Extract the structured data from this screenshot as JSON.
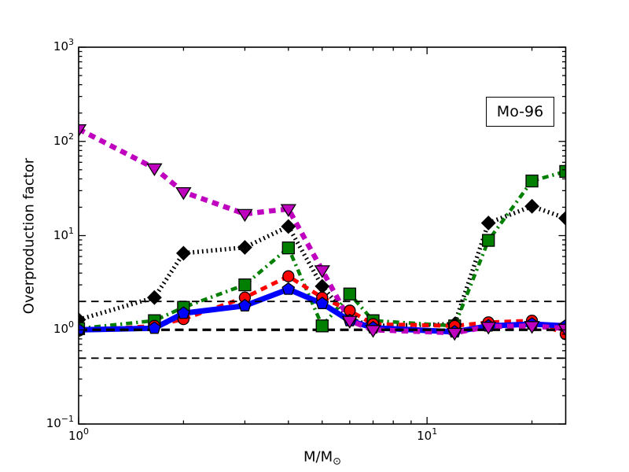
{
  "labels": {
    "xlabel_main": "M/M",
    "xlabel_sub": "⊙"
  },
  "chart_data": {
    "type": "line",
    "title": "",
    "annotation": "Mo-96",
    "xlabel": "M/M⊙",
    "ylabel": "Overproduction factor",
    "xscale": "log",
    "yscale": "log",
    "xlim": [
      1,
      25
    ],
    "ylim": [
      0.1,
      1000
    ],
    "grid": false,
    "legend": "none",
    "x": [
      1,
      1.65,
      2,
      3,
      4,
      5,
      6,
      7,
      12,
      15,
      20,
      25
    ],
    "series": [
      {
        "name": "magenta-dashed-triangles",
        "color": "#BF00BF",
        "linestyle": "dashed",
        "linewidth": 6.5,
        "marker": "triangle-down",
        "marker_size": 10,
        "values": [
          135,
          52,
          29,
          17,
          19.2,
          4.3,
          1.25,
          1.0,
          0.93,
          1.08,
          1.1,
          1.03
        ]
      },
      {
        "name": "black-dotted-diamonds",
        "color": "#000000",
        "linestyle": "dotted",
        "linewidth": 5.5,
        "marker": "diamond",
        "marker_size": 8.5,
        "values": [
          1.28,
          2.2,
          6.5,
          7.5,
          12.5,
          2.9,
          1.3,
          1.1,
          1.15,
          13.6,
          20.5,
          15.3
        ]
      },
      {
        "name": "green-dashdot-squares",
        "color": "#007F00",
        "linestyle": "dashdot",
        "linewidth": 4.5,
        "marker": "square",
        "marker_size": 7.5,
        "values": [
          1.03,
          1.25,
          1.73,
          3.0,
          7.4,
          1.1,
          2.4,
          1.25,
          1.1,
          8.9,
          38,
          48
        ]
      },
      {
        "name": "red-dashed-circles",
        "color": "#FF0000",
        "linestyle": "dashed",
        "linewidth": 5,
        "marker": "circle",
        "marker_size": 7,
        "values": [
          0.98,
          1.1,
          1.3,
          2.2,
          3.7,
          2.2,
          1.6,
          1.15,
          1.1,
          1.2,
          1.25,
          0.9
        ]
      },
      {
        "name": "blue-solid-pentagons",
        "color": "#0000FF",
        "linestyle": "solid",
        "linewidth": 7,
        "marker": "pentagon",
        "marker_size": 8,
        "values": [
          1.0,
          1.04,
          1.5,
          1.8,
          2.7,
          1.9,
          1.25,
          1.05,
          0.95,
          1.1,
          1.15,
          1.1
        ]
      }
    ],
    "hlines": [
      {
        "y": 2,
        "color": "#000000",
        "linestyle": "dashed",
        "linewidth": 1.8
      },
      {
        "y": 1,
        "color": "#000000",
        "linestyle": "dashed",
        "linewidth": 3.2
      },
      {
        "y": 0.5,
        "color": "#000000",
        "linestyle": "dashed",
        "linewidth": 1.8
      }
    ],
    "x_major_ticks": [
      {
        "value": 1,
        "base": "10",
        "exp": "0"
      },
      {
        "value": 10,
        "base": "10",
        "exp": "1"
      }
    ],
    "y_major_ticks": [
      {
        "value": 0.1,
        "base": "10",
        "exp": "−1"
      },
      {
        "value": 1,
        "base": "10",
        "exp": "0"
      },
      {
        "value": 10,
        "base": "10",
        "exp": "1"
      },
      {
        "value": 100,
        "base": "10",
        "exp": "2"
      },
      {
        "value": 1000,
        "base": "10",
        "exp": "3"
      }
    ]
  }
}
